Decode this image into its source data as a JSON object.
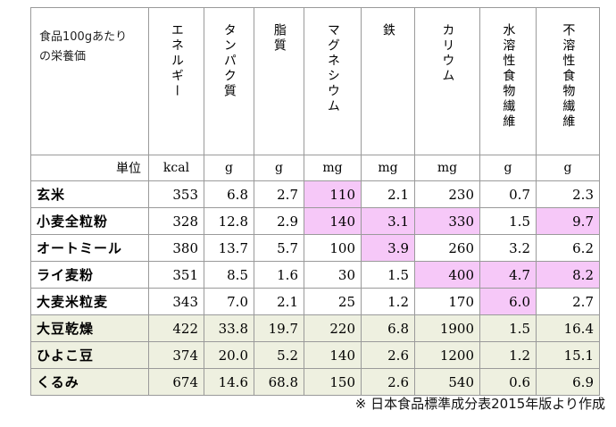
{
  "header": {
    "label": [
      "食品100gあたり",
      "の栄養価"
    ],
    "columns": [
      "エネルギー",
      "タンパク質",
      "脂質",
      "マグネシウム",
      "鉄",
      "カリウム",
      "水溶性食物繊維",
      "不溶性食物繊維"
    ]
  },
  "units": {
    "label": "単位",
    "values": [
      "kcal",
      "g",
      "g",
      "mg",
      "mg",
      "mg",
      "g",
      "g"
    ]
  },
  "rows": [
    {
      "name": "玄米",
      "values": [
        "353",
        "6.8",
        "2.7",
        "110",
        "2.1",
        "230",
        "0.7",
        "2.3"
      ],
      "highlight": [
        false,
        false,
        false,
        true,
        false,
        false,
        false,
        false
      ],
      "group": "grain"
    },
    {
      "name": "小麦全粒粉",
      "values": [
        "328",
        "12.8",
        "2.9",
        "140",
        "3.1",
        "330",
        "1.5",
        "9.7"
      ],
      "highlight": [
        false,
        false,
        false,
        true,
        true,
        true,
        false,
        true
      ],
      "group": "grain"
    },
    {
      "name": "オートミール",
      "values": [
        "380",
        "13.7",
        "5.7",
        "100",
        "3.9",
        "260",
        "3.2",
        "6.2"
      ],
      "highlight": [
        false,
        false,
        false,
        false,
        true,
        false,
        false,
        false
      ],
      "group": "grain"
    },
    {
      "name": "ライ麦粉",
      "values": [
        "351",
        "8.5",
        "1.6",
        "30",
        "1.5",
        "400",
        "4.7",
        "8.2"
      ],
      "highlight": [
        false,
        false,
        false,
        false,
        false,
        true,
        true,
        true
      ],
      "group": "grain"
    },
    {
      "name": "大麦米粒麦",
      "values": [
        "343",
        "7.0",
        "2.1",
        "25",
        "1.2",
        "170",
        "6.0",
        "2.7"
      ],
      "highlight": [
        false,
        false,
        false,
        false,
        false,
        false,
        true,
        false
      ],
      "group": "grain"
    },
    {
      "name": "大豆乾燥",
      "values": [
        "422",
        "33.8",
        "19.7",
        "220",
        "6.8",
        "1900",
        "1.5",
        "16.4"
      ],
      "highlight": [
        false,
        false,
        false,
        false,
        false,
        false,
        false,
        false
      ],
      "group": "other"
    },
    {
      "name": "ひよこ豆",
      "values": [
        "374",
        "20.0",
        "5.2",
        "140",
        "2.6",
        "1200",
        "1.2",
        "15.1"
      ],
      "highlight": [
        false,
        false,
        false,
        false,
        false,
        false,
        false,
        false
      ],
      "group": "other"
    },
    {
      "name": "くるみ",
      "values": [
        "674",
        "14.6",
        "68.8",
        "150",
        "2.6",
        "540",
        "0.6",
        "6.9"
      ],
      "highlight": [
        false,
        false,
        false,
        false,
        false,
        false,
        false,
        false
      ],
      "group": "other"
    }
  ],
  "colors": {
    "highlight": "#f6c8f8",
    "other_group_bg": "#eef0e0",
    "border": "#9a9a9a"
  },
  "note": "※ 日本食品標準成分表2015年版より作成"
}
